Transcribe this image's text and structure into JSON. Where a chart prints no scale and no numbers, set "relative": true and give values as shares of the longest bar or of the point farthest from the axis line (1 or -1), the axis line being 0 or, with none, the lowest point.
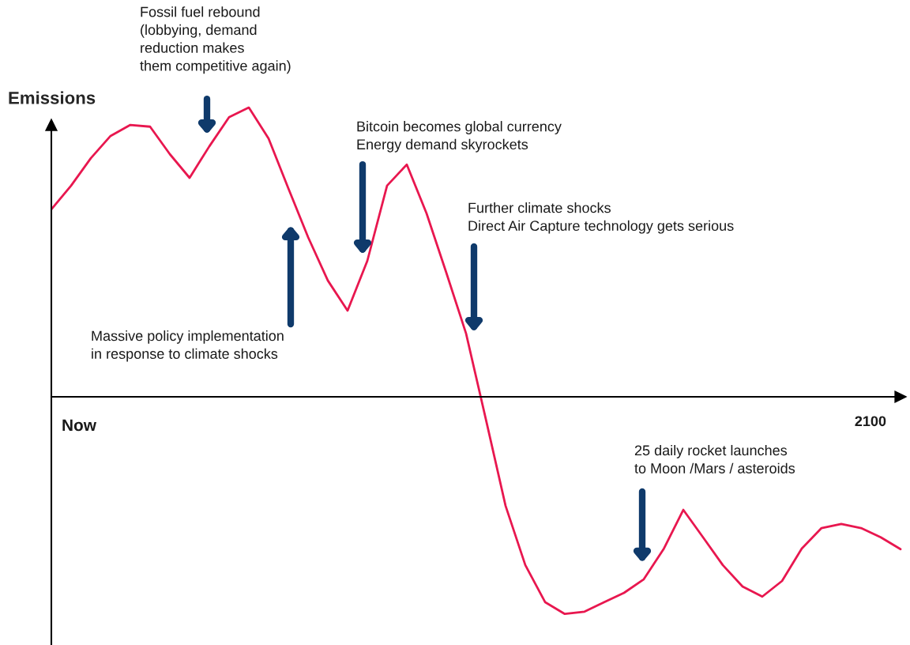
{
  "chart_data": {
    "type": "line",
    "relative": true,
    "ylabel": "Emissions",
    "categories": [
      null,
      null,
      null,
      null,
      null,
      null,
      null,
      null,
      null,
      null,
      null,
      null,
      null,
      null,
      null,
      null,
      null,
      null,
      null,
      null,
      null,
      null,
      null,
      null,
      null,
      null,
      null,
      null,
      null,
      null,
      null,
      null,
      null,
      null,
      null,
      null,
      null,
      null,
      null,
      null,
      null,
      null,
      null,
      null
    ],
    "series": [
      {
        "color": "#e8174f",
        "values": [
          0.648,
          0.73,
          0.825,
          0.902,
          0.94,
          0.934,
          0.839,
          0.757,
          0.866,
          0.967,
          1.0,
          0.893,
          0.721,
          0.552,
          0.402,
          0.298,
          0.47,
          0.73,
          0.803,
          0.634,
          0.429,
          0.219,
          -0.077,
          -0.377,
          -0.582,
          -0.71,
          -0.751,
          -0.743,
          -0.71,
          -0.678,
          -0.631,
          -0.527,
          -0.391,
          -0.486,
          -0.582,
          -0.656,
          -0.691,
          -0.637,
          -0.525,
          -0.454,
          -0.44,
          -0.454,
          -0.486,
          -0.527
        ]
      }
    ],
    "annotations": [
      "Now",
      "2100",
      "Fossil fuel rebound\n(lobbying, demand\nreduction makes\nthem competitive again)",
      "Massive policy implementation\nin response to climate shocks",
      "Bitcoin becomes global currency\nEnergy demand skyrockets",
      "Further climate shocks\nDirect Air Capture technology gets serious",
      "25 daily rocket launches\nto Moon /Mars / asteroids"
    ],
    "marker": "none",
    "line_style": "solid",
    "legend": false
  }
}
